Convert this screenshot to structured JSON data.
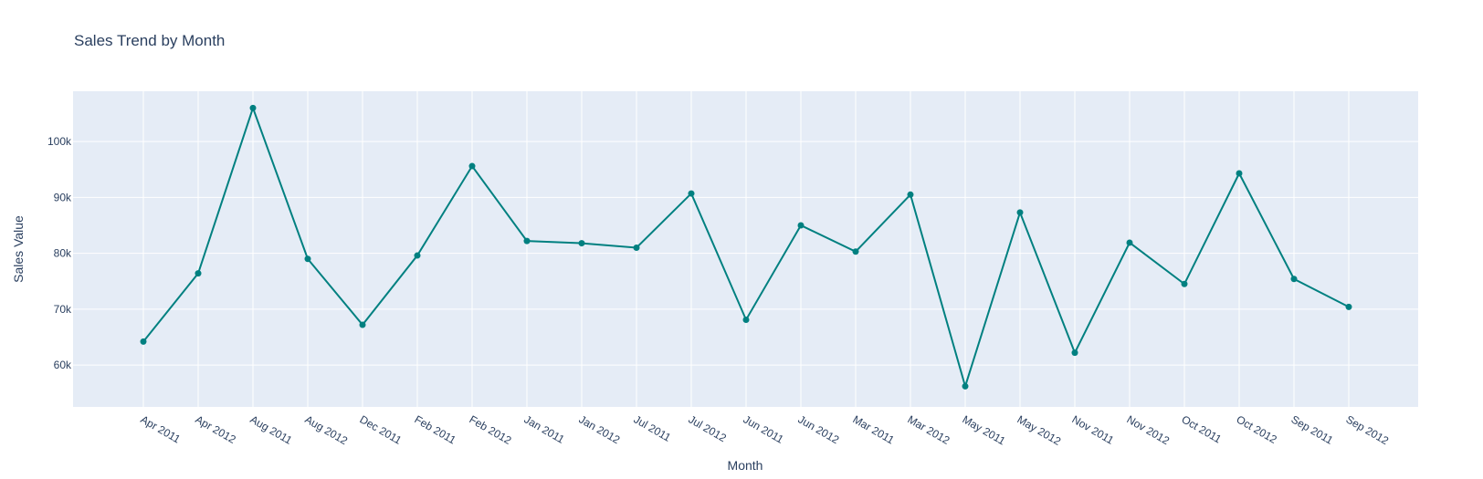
{
  "chart_data": {
    "type": "line",
    "title": "Sales Trend by Month",
    "xlabel": "Month",
    "ylabel": "Sales Value",
    "categories": [
      "Apr 2011",
      "Apr 2012",
      "Aug 2011",
      "Aug 2012",
      "Dec 2011",
      "Feb 2011",
      "Feb 2012",
      "Jan 2011",
      "Jan 2012",
      "Jul 2011",
      "Jul 2012",
      "Jun 2011",
      "Jun 2012",
      "Mar 2011",
      "Mar 2012",
      "May 2011",
      "May 2012",
      "Nov 2011",
      "Nov 2012",
      "Oct 2011",
      "Oct 2012",
      "Sep 2011",
      "Sep 2012"
    ],
    "values": [
      64200,
      76400,
      106000,
      79000,
      67200,
      79600,
      95600,
      82200,
      81800,
      81000,
      90700,
      68100,
      85000,
      80300,
      90500,
      56200,
      87300,
      62200,
      81900,
      74500,
      94300,
      75400,
      70400
    ],
    "ylim": [
      52500,
      109000
    ],
    "yticks": [
      60000,
      70000,
      80000,
      90000,
      100000
    ],
    "ytick_labels": [
      "60k",
      "70k",
      "80k",
      "90k",
      "100k"
    ],
    "grid": true,
    "line_color": "#008080",
    "plot_bg": "#e5ecf6",
    "grid_color": "#ffffff"
  }
}
